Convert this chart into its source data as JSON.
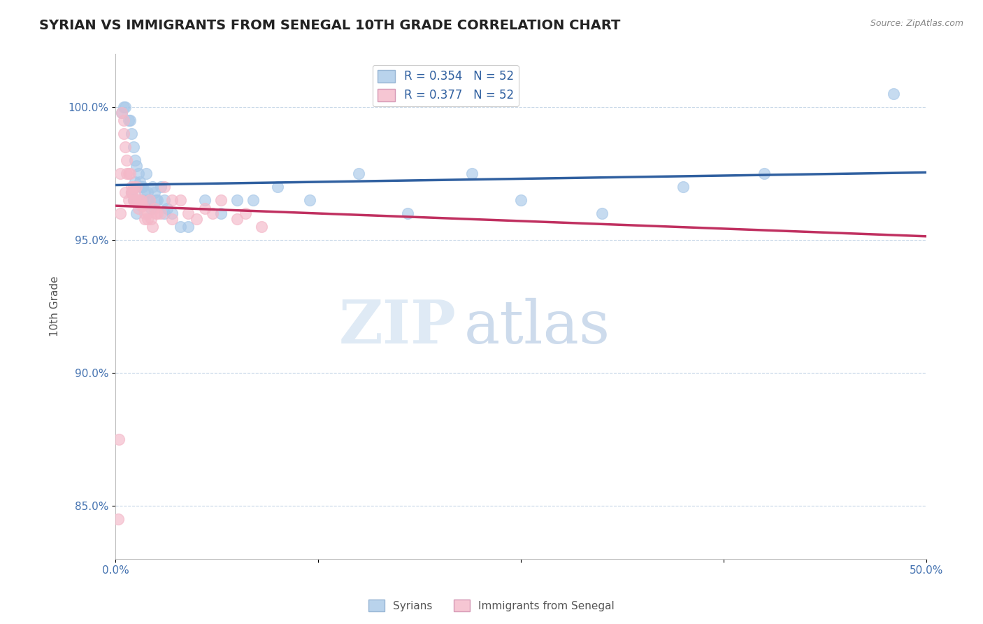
{
  "title": "SYRIAN VS IMMIGRANTS FROM SENEGAL 10TH GRADE CORRELATION CHART",
  "source": "Source: ZipAtlas.com",
  "ylabel": "10th Grade",
  "xlim": [
    0.0,
    50.0
  ],
  "ylim": [
    83.0,
    102.0
  ],
  "yticks": [
    85.0,
    90.0,
    95.0,
    100.0
  ],
  "ytick_labels": [
    "85.0%",
    "90.0%",
    "95.0%",
    "100.0%"
  ],
  "xticks": [
    0.0,
    12.5,
    25.0,
    37.5,
    50.0
  ],
  "xtick_labels": [
    "0.0%",
    "",
    "",
    "",
    "50.0%"
  ],
  "legend_bottom": [
    "Syrians",
    "Immigrants from Senegal"
  ],
  "R_blue": 0.354,
  "N_blue": 52,
  "R_pink": 0.377,
  "N_pink": 52,
  "blue_color": "#a8c8e8",
  "pink_color": "#f4b8c8",
  "blue_line_color": "#3060a0",
  "pink_line_color": "#c03060",
  "blue_scatter_x": [
    0.4,
    0.5,
    0.6,
    0.8,
    0.9,
    1.0,
    1.1,
    1.2,
    1.3,
    1.4,
    1.5,
    1.6,
    1.7,
    1.8,
    1.9,
    2.0,
    2.1,
    2.2,
    2.4,
    2.6,
    2.8,
    3.0,
    3.2,
    3.5,
    4.0,
    4.5,
    5.5,
    6.5,
    7.5,
    8.5,
    10.0,
    12.0,
    15.0,
    18.0,
    22.0,
    25.0,
    30.0,
    35.0,
    40.0,
    48.0,
    1.0,
    1.1,
    1.2,
    1.3,
    1.4,
    2.5,
    3.0,
    2.3,
    1.6,
    2.0,
    1.5,
    1.7
  ],
  "blue_scatter_y": [
    99.8,
    100.0,
    100.0,
    99.5,
    99.5,
    99.0,
    98.5,
    98.0,
    97.8,
    97.5,
    97.2,
    97.0,
    97.0,
    96.8,
    97.5,
    96.5,
    96.5,
    96.2,
    96.8,
    96.5,
    97.0,
    96.5,
    96.2,
    96.0,
    95.5,
    95.5,
    96.5,
    96.0,
    96.5,
    96.5,
    97.0,
    96.5,
    97.5,
    96.0,
    97.5,
    96.5,
    96.0,
    97.0,
    97.5,
    100.5,
    96.8,
    96.5,
    97.2,
    96.0,
    96.5,
    96.5,
    96.0,
    97.0,
    97.0,
    96.8,
    96.5,
    96.5
  ],
  "pink_scatter_x": [
    0.15,
    0.2,
    0.3,
    0.4,
    0.5,
    0.5,
    0.6,
    0.7,
    0.7,
    0.8,
    0.9,
    1.0,
    1.0,
    1.1,
    1.2,
    1.2,
    1.3,
    1.4,
    1.5,
    1.6,
    1.7,
    1.8,
    2.0,
    2.1,
    2.2,
    2.4,
    2.6,
    3.0,
    3.5,
    4.0,
    5.0,
    6.0,
    0.3,
    0.6,
    0.8,
    1.0,
    1.1,
    1.2,
    1.4,
    1.6,
    1.8,
    2.0,
    2.3,
    2.5,
    2.8,
    3.5,
    4.5,
    5.5,
    6.5,
    7.5,
    8.0,
    9.0
  ],
  "pink_scatter_y": [
    84.5,
    87.5,
    97.5,
    99.8,
    99.5,
    99.0,
    98.5,
    98.0,
    97.5,
    97.5,
    97.5,
    97.0,
    96.8,
    97.0,
    96.8,
    96.5,
    97.0,
    96.5,
    96.5,
    96.5,
    96.3,
    95.8,
    96.0,
    96.5,
    95.8,
    96.2,
    96.0,
    97.0,
    96.5,
    96.5,
    95.8,
    96.0,
    96.0,
    96.8,
    96.5,
    96.8,
    96.5,
    96.5,
    96.2,
    96.3,
    96.0,
    95.8,
    95.5,
    96.0,
    96.0,
    95.8,
    96.0,
    96.2,
    96.5,
    95.8,
    96.0,
    95.5
  ],
  "watermark_zip": "ZIP",
  "watermark_atlas": "atlas",
  "background_color": "#ffffff",
  "grid_color": "#c8d8e8",
  "title_fontsize": 14,
  "axis_label_fontsize": 11,
  "tick_fontsize": 11,
  "tick_color": "#4472b0"
}
